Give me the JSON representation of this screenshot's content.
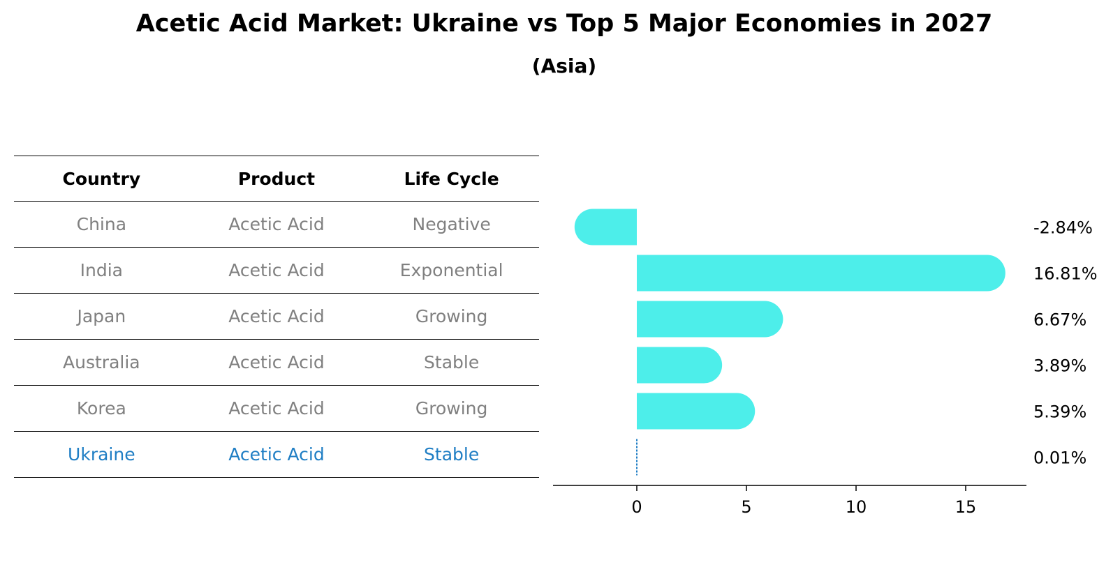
{
  "title": "Acetic Acid Market: Ukraine vs Top 5 Major Economies in 2027",
  "subtitle": "(Asia)",
  "table": {
    "headers": [
      "Country",
      "Product",
      "Life Cycle"
    ],
    "rows": [
      {
        "country": "China",
        "product": "Acetic Acid",
        "life_cycle": "Negative"
      },
      {
        "country": "India",
        "product": "Acetic Acid",
        "life_cycle": "Exponential"
      },
      {
        "country": "Japan",
        "product": "Acetic Acid",
        "life_cycle": "Growing"
      },
      {
        "country": "Australia",
        "product": "Acetic Acid",
        "life_cycle": "Stable"
      },
      {
        "country": "Korea",
        "product": "Acetic Acid",
        "life_cycle": "Growing"
      },
      {
        "country": "Ukraine",
        "product": "Acetic Acid",
        "life_cycle": "Stable"
      }
    ]
  },
  "colors": {
    "bar": "#4deeea",
    "highlight_text": "#1f7ec4",
    "muted_text": "#808080",
    "ukraine_line": "#1f7ec4"
  },
  "chart_data": {
    "type": "bar",
    "orientation": "horizontal",
    "categories": [
      "China",
      "India",
      "Japan",
      "Australia",
      "Korea",
      "Ukraine"
    ],
    "values": [
      -2.84,
      16.81,
      6.67,
      3.89,
      5.39,
      0.01
    ],
    "value_labels": [
      "-2.84%",
      "16.81%",
      "6.67%",
      "3.89%",
      "5.39%",
      "0.01%"
    ],
    "xlim": [
      -3.9,
      17.9
    ],
    "xticks": [
      0,
      5,
      10,
      15
    ],
    "xlabel": "",
    "ylabel": "",
    "grid": false
  }
}
